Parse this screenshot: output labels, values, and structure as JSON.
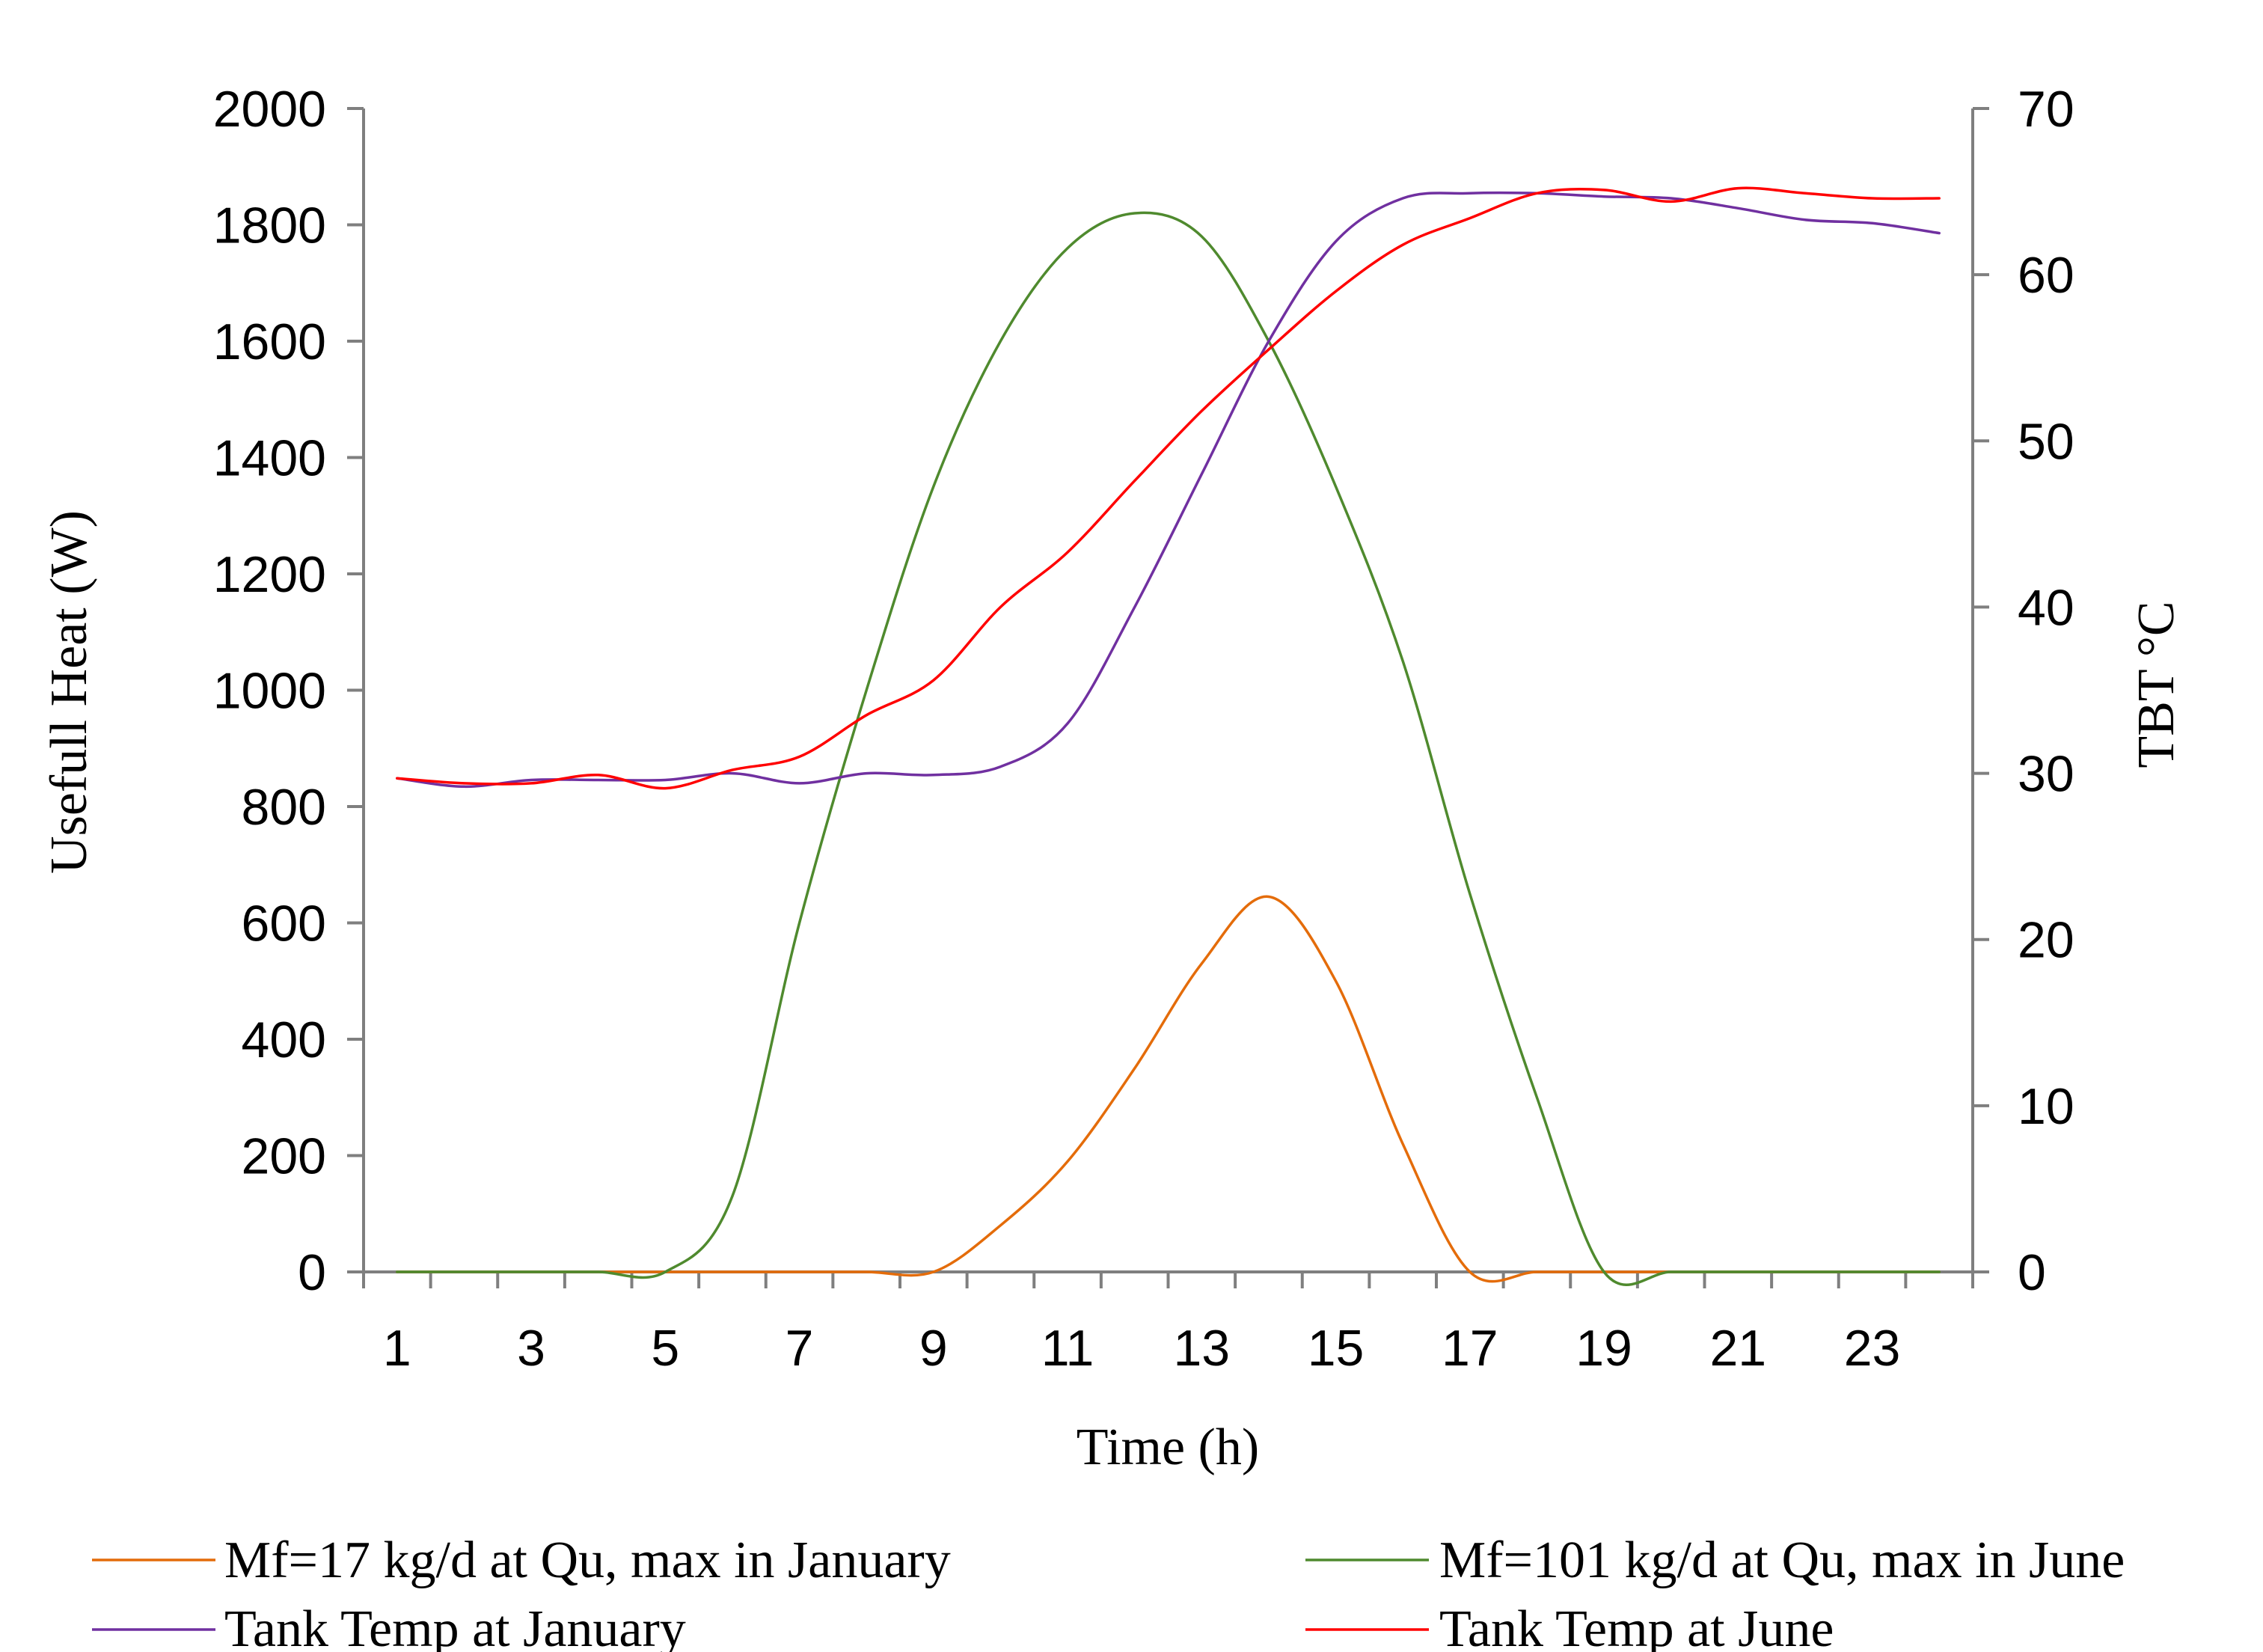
{
  "chart_data": {
    "type": "line",
    "title": "",
    "xlabel": "Time (h)",
    "ylabel": "Usefull Heat (W)",
    "y2label": "TBT °C",
    "xlim": [
      0.5,
      24.5
    ],
    "ylim": [
      0,
      2000
    ],
    "y2lim": [
      0,
      70
    ],
    "grid": false,
    "legend_position": "bottom",
    "x_ticks": [
      1,
      3,
      5,
      7,
      9,
      11,
      13,
      15,
      17,
      19,
      21,
      23
    ],
    "y_ticks": [
      0,
      200,
      400,
      600,
      800,
      1000,
      1200,
      1400,
      1600,
      1800,
      2000
    ],
    "y2_ticks": [
      0,
      10,
      20,
      30,
      40,
      50,
      60,
      70
    ],
    "x_tick_labels": [
      "1",
      "3",
      "5",
      "7",
      "9",
      "11",
      "13",
      "15",
      "17",
      "19",
      "21",
      "23"
    ],
    "y_tick_labels": [
      "0",
      "200",
      "400",
      "600",
      "800",
      "1000",
      "1200",
      "1400",
      "1600",
      "1800",
      "2000"
    ],
    "y2_tick_labels": [
      "0",
      "10",
      "20",
      "30",
      "40",
      "50",
      "60",
      "70"
    ],
    "series": [
      {
        "name": "Mf=17 kg/d at Qu, max in January",
        "axis": "left",
        "color": "#e46c0a",
        "x": [
          1,
          2,
          3,
          4,
          5,
          6,
          7,
          8,
          9,
          10,
          11,
          12,
          13,
          14,
          15,
          16,
          17,
          18,
          19,
          20,
          21,
          22,
          23,
          24
        ],
        "values": [
          0,
          0,
          0,
          0,
          0,
          0,
          0,
          0,
          0,
          80,
          190,
          350,
          530,
          645,
          500,
          220,
          0,
          0,
          0,
          0,
          0,
          0,
          0,
          0
        ]
      },
      {
        "name": "Mf=101 kg/d at Qu, max in June",
        "axis": "left",
        "color": "#4f8a2e",
        "x": [
          1,
          2,
          3,
          4,
          5,
          6,
          7,
          8,
          9,
          10,
          11,
          12,
          13,
          14,
          15,
          16,
          17,
          18,
          19,
          20,
          21,
          22,
          23,
          24
        ],
        "values": [
          0,
          0,
          0,
          0,
          0,
          130,
          600,
          1000,
          1350,
          1600,
          1760,
          1820,
          1780,
          1600,
          1350,
          1050,
          650,
          300,
          0,
          0,
          0,
          0,
          0,
          0
        ]
      },
      {
        "name": "Tank Temp at January",
        "axis": "right",
        "color": "#7030a0",
        "x": [
          1,
          2,
          3,
          4,
          5,
          6,
          7,
          8,
          9,
          10,
          11,
          12,
          13,
          14,
          15,
          16,
          17,
          18,
          19,
          20,
          21,
          22,
          23,
          24
        ],
        "values": [
          29.7,
          29.2,
          29.6,
          29.6,
          29.6,
          30.0,
          29.4,
          30.0,
          29.9,
          30.4,
          33.0,
          40.0,
          48.0,
          56.0,
          62.0,
          64.6,
          64.9,
          64.9,
          64.7,
          64.6,
          64.0,
          63.3,
          63.1,
          62.5
        ]
      },
      {
        "name": "Tank Temp at June",
        "axis": "right",
        "color": "#ff0000",
        "x": [
          1,
          2,
          3,
          4,
          5,
          6,
          7,
          8,
          9,
          10,
          11,
          12,
          13,
          14,
          15,
          16,
          17,
          18,
          19,
          20,
          21,
          22,
          23,
          24
        ],
        "values": [
          29.7,
          29.4,
          29.4,
          29.9,
          29.1,
          30.2,
          31.0,
          33.5,
          35.6,
          40.0,
          43.3,
          47.6,
          51.8,
          55.5,
          59.0,
          61.8,
          63.4,
          64.9,
          65.1,
          64.4,
          65.2,
          64.9,
          64.6,
          64.6
        ]
      }
    ]
  }
}
